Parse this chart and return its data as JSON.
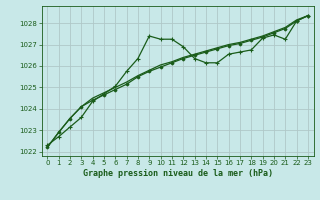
{
  "bg_color": "#c8e8e8",
  "grid_color": "#b0c8c8",
  "line_color": "#1a5c1a",
  "title": "Graphe pression niveau de la mer (hPa)",
  "xlim": [
    -0.5,
    23.5
  ],
  "ylim": [
    1021.8,
    1028.8
  ],
  "xticks": [
    0,
    1,
    2,
    3,
    4,
    5,
    6,
    7,
    8,
    9,
    10,
    11,
    12,
    13,
    14,
    15,
    16,
    17,
    18,
    19,
    20,
    21,
    22,
    23
  ],
  "yticks": [
    1022,
    1023,
    1024,
    1025,
    1026,
    1027,
    1028
  ],
  "series1_x": [
    0,
    1,
    2,
    3,
    4,
    5,
    6,
    7,
    8,
    9,
    10,
    11,
    12,
    13,
    14,
    15,
    16,
    17,
    18,
    19,
    20,
    21,
    22,
    23
  ],
  "series1_y": [
    1022.3,
    1022.7,
    1023.15,
    1023.6,
    1024.35,
    1024.7,
    1025.05,
    1025.75,
    1026.35,
    1027.4,
    1027.25,
    1027.25,
    1026.9,
    1026.35,
    1026.15,
    1026.15,
    1026.55,
    1026.65,
    1026.75,
    1027.3,
    1027.45,
    1027.25,
    1028.1,
    1028.35
  ],
  "series2_x": [
    0,
    1,
    2,
    3,
    4,
    5,
    6,
    7,
    8,
    9,
    10,
    11,
    12,
    13,
    14,
    15,
    16,
    17,
    18,
    19,
    20,
    21,
    22,
    23
  ],
  "series2_y": [
    1022.2,
    1022.9,
    1023.55,
    1024.1,
    1024.4,
    1024.65,
    1024.9,
    1025.15,
    1025.5,
    1025.75,
    1025.95,
    1026.15,
    1026.35,
    1026.5,
    1026.65,
    1026.8,
    1026.95,
    1027.05,
    1027.2,
    1027.35,
    1027.55,
    1027.75,
    1028.1,
    1028.35
  ],
  "series3_x": [
    0,
    1,
    2,
    3,
    4,
    5,
    6,
    7,
    8,
    9,
    10,
    11,
    12,
    13,
    14,
    15,
    16,
    17,
    18,
    19,
    20,
    21,
    22,
    23
  ],
  "series3_y": [
    1022.2,
    1022.9,
    1023.55,
    1024.1,
    1024.5,
    1024.75,
    1025.0,
    1025.25,
    1025.55,
    1025.8,
    1026.05,
    1026.2,
    1026.4,
    1026.55,
    1026.7,
    1026.85,
    1027.0,
    1027.1,
    1027.25,
    1027.4,
    1027.6,
    1027.8,
    1028.15,
    1028.35
  ]
}
